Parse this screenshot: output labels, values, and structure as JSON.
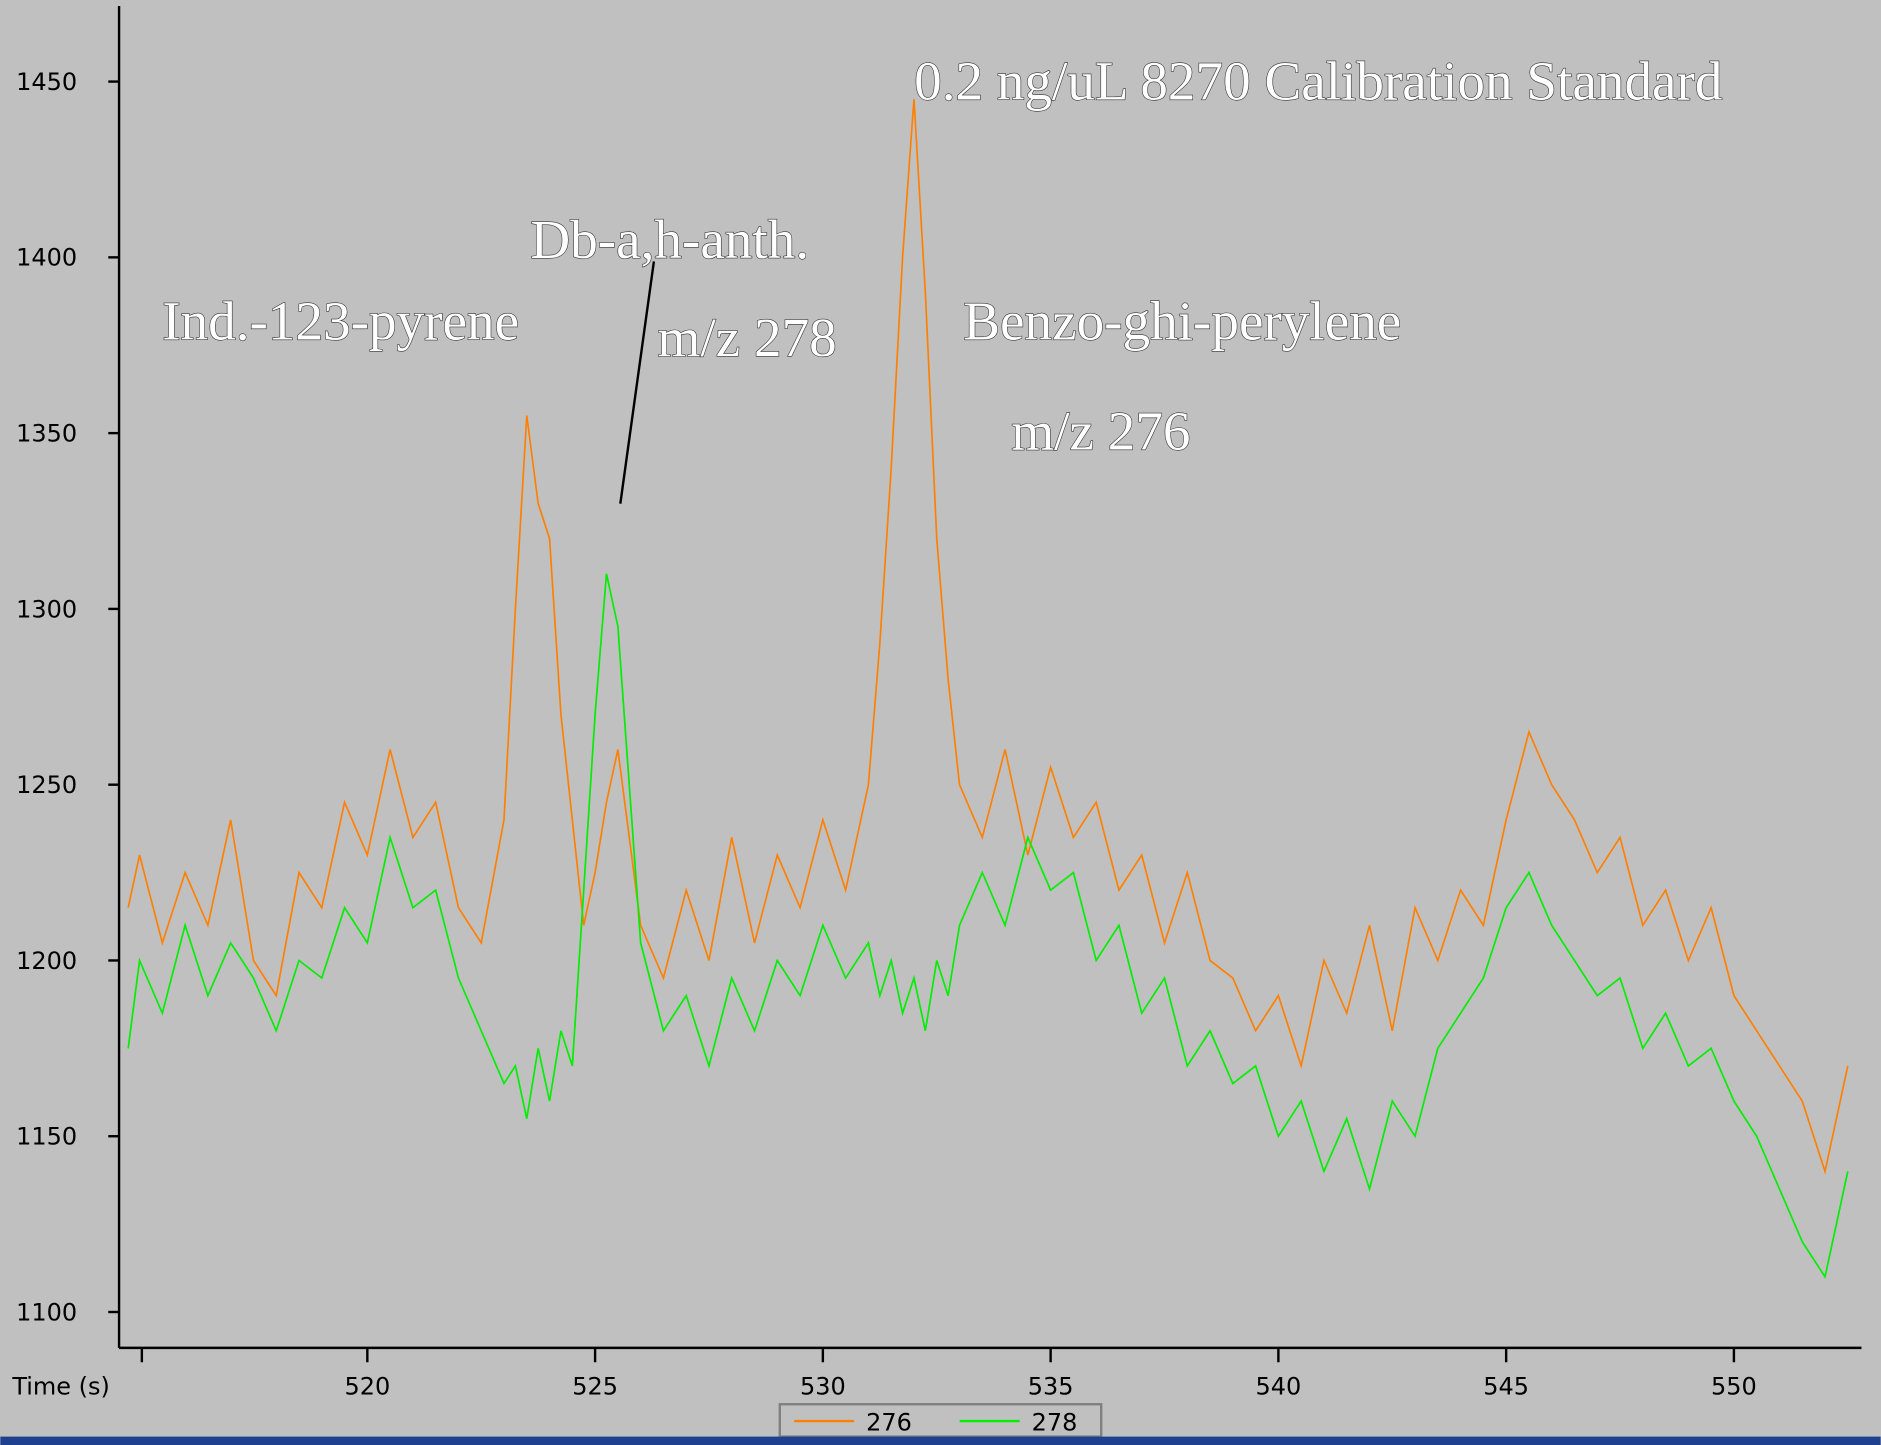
{
  "chart_data": {
    "type": "line",
    "title": "0.2 ng/uL 8270 Calibration Standard",
    "annotations": [
      "Db-a,h-anth.",
      "Ind.-123-pyrene",
      "m/z 278",
      "Benzo-ghi-perylene",
      "m/z 276"
    ],
    "x_label": "Time (s)",
    "x": [
      514.75,
      515,
      515.5,
      516,
      516.5,
      517,
      517.5,
      518,
      518.5,
      519,
      519.5,
      520,
      520.5,
      521,
      521.5,
      522,
      522.5,
      523,
      523.25,
      523.5,
      523.75,
      524,
      524.25,
      524.5,
      524.75,
      525,
      525.25,
      525.5,
      525.75,
      526,
      526.5,
      527,
      527.5,
      528,
      528.5,
      529,
      529.5,
      530,
      530.5,
      531,
      531.25,
      531.5,
      531.75,
      532,
      532.25,
      532.5,
      532.75,
      533,
      533.5,
      534,
      534.5,
      535,
      535.5,
      536,
      536.5,
      537,
      537.5,
      538,
      538.5,
      539,
      539.5,
      540,
      540.5,
      541,
      541.5,
      542,
      542.5,
      543,
      543.5,
      544,
      544.5,
      545,
      545.5,
      546,
      546.5,
      547,
      547.5,
      548,
      548.5,
      549,
      549.5,
      550,
      550.5,
      551,
      551.5,
      552,
      552.5
    ],
    "series": [
      {
        "name": "276",
        "color": "#ff8000",
        "values": [
          1215,
          1230,
          1205,
          1225,
          1210,
          1240,
          1200,
          1190,
          1225,
          1215,
          1245,
          1230,
          1260,
          1235,
          1245,
          1215,
          1205,
          1240,
          1300,
          1355,
          1330,
          1320,
          1270,
          1240,
          1210,
          1225,
          1245,
          1260,
          1235,
          1210,
          1195,
          1220,
          1200,
          1235,
          1205,
          1230,
          1215,
          1240,
          1220,
          1250,
          1290,
          1340,
          1400,
          1445,
          1390,
          1320,
          1280,
          1250,
          1235,
          1260,
          1230,
          1255,
          1235,
          1245,
          1220,
          1230,
          1205,
          1225,
          1200,
          1195,
          1180,
          1190,
          1170,
          1200,
          1185,
          1210,
          1180,
          1215,
          1200,
          1220,
          1210,
          1240,
          1265,
          1250,
          1240,
          1225,
          1235,
          1210,
          1220,
          1200,
          1215,
          1190,
          1180,
          1170,
          1160,
          1140,
          1170
        ]
      },
      {
        "name": "278",
        "color": "#00ee00",
        "values": [
          1175,
          1200,
          1185,
          1210,
          1190,
          1205,
          1195,
          1180,
          1200,
          1195,
          1215,
          1205,
          1235,
          1215,
          1220,
          1195,
          1180,
          1165,
          1170,
          1155,
          1175,
          1160,
          1180,
          1170,
          1220,
          1270,
          1310,
          1295,
          1250,
          1205,
          1180,
          1190,
          1170,
          1195,
          1180,
          1200,
          1190,
          1210,
          1195,
          1205,
          1190,
          1200,
          1185,
          1195,
          1180,
          1200,
          1190,
          1210,
          1225,
          1210,
          1235,
          1220,
          1225,
          1200,
          1210,
          1185,
          1195,
          1170,
          1180,
          1165,
          1170,
          1150,
          1160,
          1140,
          1155,
          1135,
          1160,
          1150,
          1175,
          1185,
          1195,
          1215,
          1225,
          1210,
          1200,
          1190,
          1195,
          1175,
          1185,
          1170,
          1175,
          1160,
          1150,
          1135,
          1120,
          1110,
          1140
        ]
      }
    ],
    "xlim": [
      514.55,
      552.8
    ],
    "ylim": [
      1089.8,
      1471.5
    ],
    "xticks": [
      520,
      525,
      530,
      535,
      540,
      545,
      550
    ],
    "yticks": [
      1100,
      1150,
      1200,
      1250,
      1300,
      1350,
      1400,
      1450
    ],
    "legend": "bottom"
  }
}
